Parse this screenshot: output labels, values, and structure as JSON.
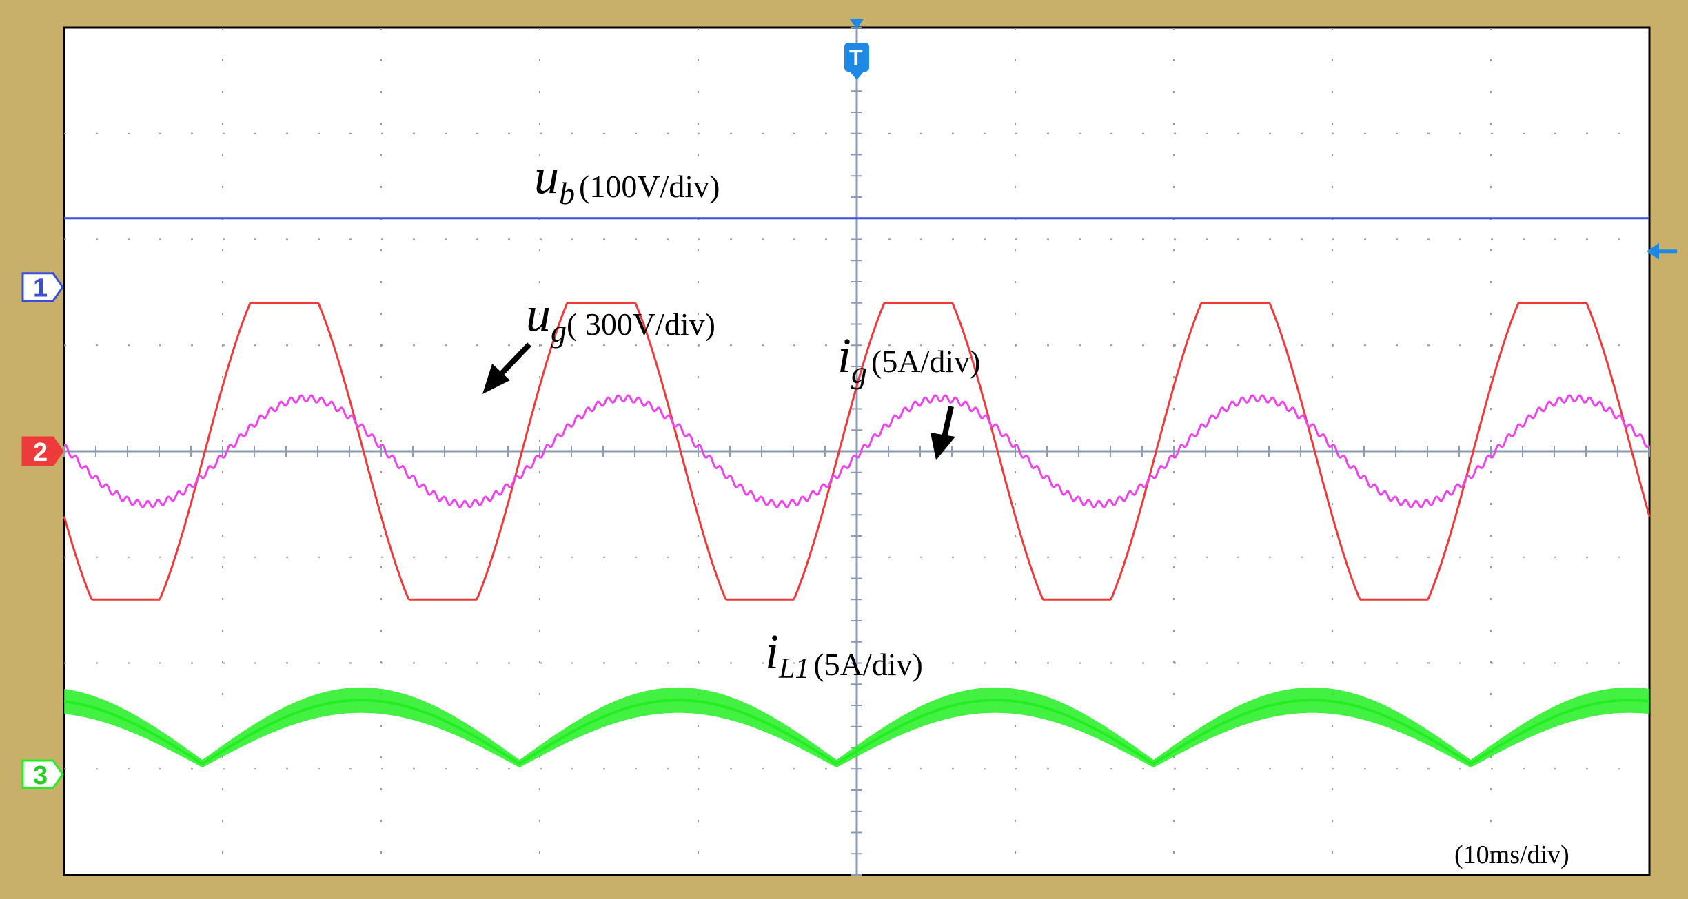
{
  "colors": {
    "bezel": "#c9b06a",
    "screen": "#ffffff",
    "grid": "#9a9a9a",
    "axis": "#8a9ab4",
    "ub": "#3a4fd6",
    "ug": "#ee3a3a",
    "ig": "#ee44ee",
    "iL1": "#22ee22",
    "trigger": "#1e88e5"
  },
  "chart_data": {
    "type": "line",
    "title": "",
    "xlabel": "",
    "ylabel": "",
    "divisions": {
      "x": 10,
      "y": 8
    },
    "timebase": "(10ms/div)",
    "x": {
      "unit": "ms",
      "range": [
        -50,
        50
      ]
    },
    "zero_reference": "screen center line",
    "series": [
      {
        "channel": "1",
        "symbol": "u",
        "subscript": "b",
        "scale": "(100V/div)",
        "shape": "dc",
        "level_div": 2.2
      },
      {
        "channel": "2",
        "symbol": "u",
        "subscript": "g",
        "scale": "( 300V/div)",
        "shape": "clipped-sine",
        "period_ms": 20,
        "amplitude_div": 1.4,
        "offset_div": 0,
        "phase_deg": 0
      },
      {
        "channel": "2",
        "symbol": "i",
        "subscript": "g",
        "scale": "(5A/div)",
        "shape": "sine",
        "period_ms": 20,
        "amplitude_div": 0.5,
        "offset_div": 0,
        "phase_deg": 25
      },
      {
        "channel": "3",
        "symbol": "i",
        "subscript": "L1",
        "scale": "(5A/div)",
        "shape": "rectified-sine-with-ripple",
        "period_ms": 20,
        "amplitude_div": 0.6,
        "offset_div": -2.95,
        "ripple_div": 0.12
      }
    ],
    "channel_markers": [
      "1",
      "2",
      "3"
    ],
    "trigger_marker": "T"
  }
}
